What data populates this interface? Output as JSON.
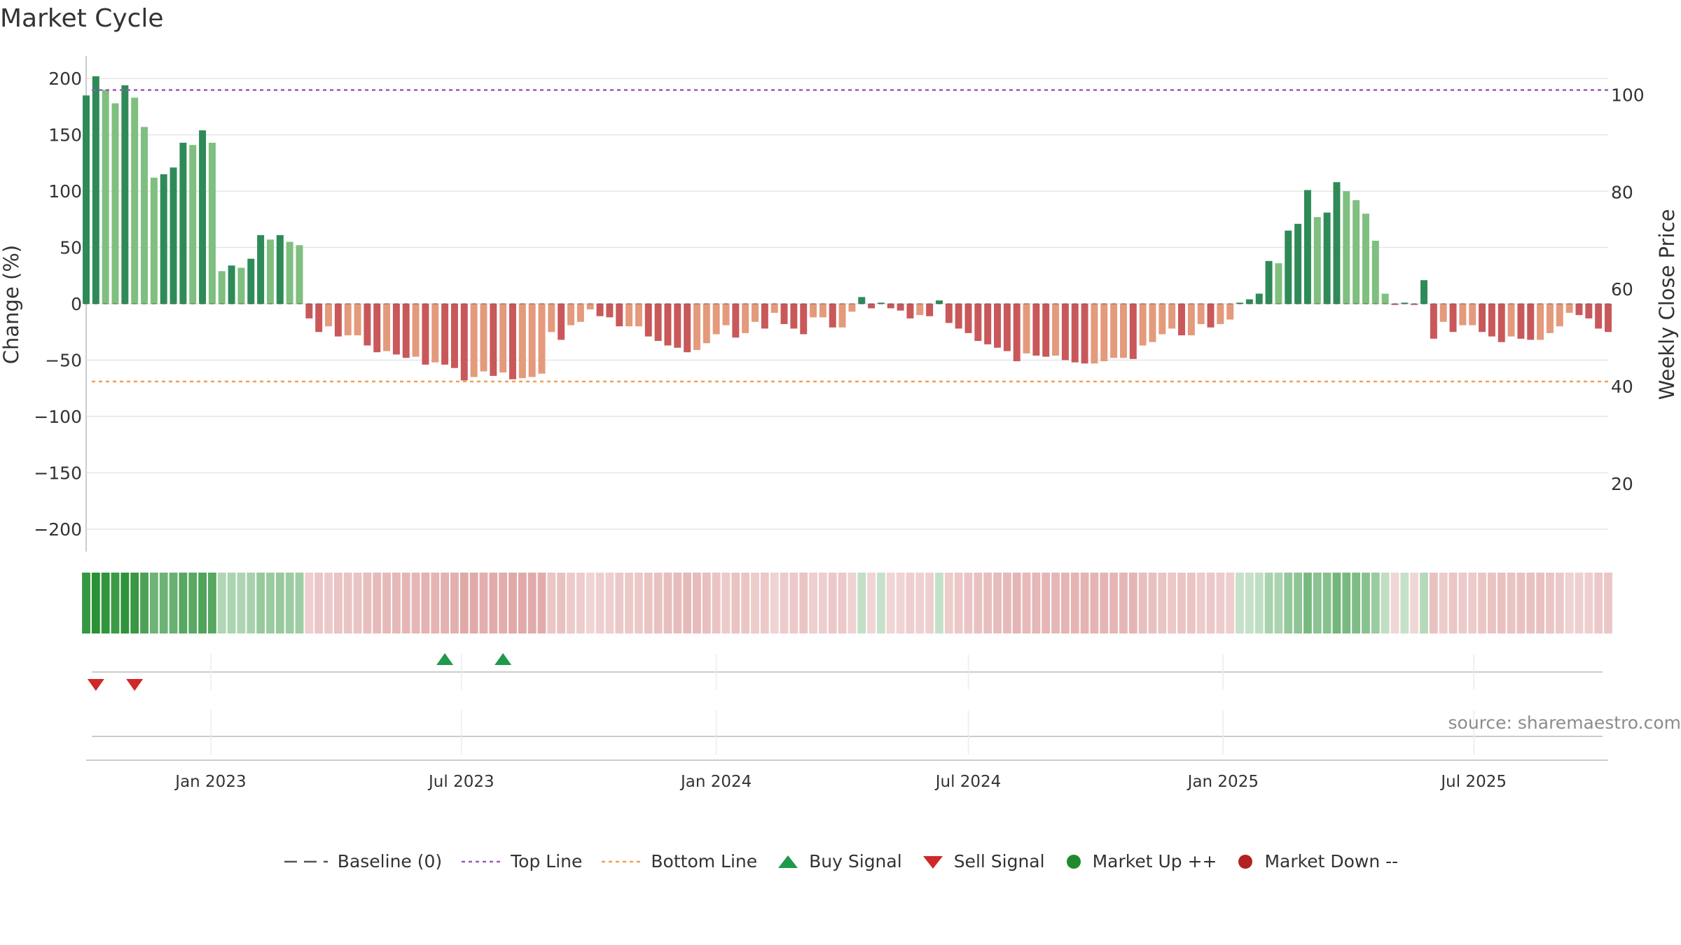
{
  "chart_data": {
    "type": "bar",
    "title": "Market Cycle",
    "ylabel": "Change (%)",
    "y2label": "Weekly Close Price",
    "ylim": [
      -220,
      220
    ],
    "y2lim": [
      6,
      108
    ],
    "yticks": [
      200,
      150,
      100,
      50,
      0,
      -50,
      -100,
      -150,
      -200
    ],
    "y2ticks": [
      100,
      80,
      60,
      40,
      20
    ],
    "xlim": [
      "2022-10-03",
      "2025-10-06"
    ],
    "xticks": [
      {
        "date": "2023-01-01",
        "label": "Jan 2023"
      },
      {
        "date": "2023-07-01",
        "label": "Jul 2023"
      },
      {
        "date": "2024-01-01",
        "label": "Jan 2024"
      },
      {
        "date": "2024-07-01",
        "label": "Jul 2024"
      },
      {
        "date": "2025-01-01",
        "label": "Jan 2025"
      },
      {
        "date": "2025-07-01",
        "label": "Jul 2025"
      }
    ],
    "start_date": "2022-10-03",
    "interval_days": 7,
    "top_line": 101,
    "bottom_line": 41,
    "values": [
      185,
      202,
      190,
      178,
      194,
      183,
      157,
      112,
      115,
      121,
      143,
      141,
      154,
      143,
      29,
      34,
      32,
      40,
      61,
      57,
      61,
      55,
      52,
      -13,
      -25,
      -20,
      -29,
      -28,
      -28,
      -37,
      -43,
      -42,
      -45,
      -48,
      -47,
      -54,
      -52,
      -54,
      -57,
      -68,
      -65,
      -60,
      -64,
      -61,
      -67,
      -66,
      -65,
      -62,
      -25,
      -32,
      -19,
      -16,
      -5,
      -11,
      -12,
      -20,
      -20,
      -20,
      -29,
      -33,
      -37,
      -39,
      -43,
      -41,
      -35,
      -27,
      -19,
      -30,
      -26,
      -16,
      -22,
      -8,
      -18,
      -22,
      -27,
      -12,
      -12,
      -21,
      -21,
      -7,
      6,
      -4,
      1,
      -4,
      -6,
      -13,
      -10,
      -11,
      3,
      -17,
      -22,
      -26,
      -33,
      -36,
      -39,
      -42,
      -51,
      -44,
      -46,
      -47,
      -46,
      -50,
      -52,
      -53,
      -53,
      -51,
      -48,
      -48,
      -49,
      -37,
      -34,
      -27,
      -22,
      -28,
      -28,
      -18,
      -21,
      -18,
      -14,
      1,
      4,
      9,
      38,
      36,
      65,
      71,
      101,
      77,
      81,
      108,
      100,
      92,
      80,
      56,
      9,
      -1,
      1,
      -1,
      21,
      -31,
      -16,
      -25,
      -19,
      -19,
      -25,
      -29,
      -34,
      -29,
      -31,
      -32,
      -32,
      -26,
      -20,
      -8,
      -10,
      -13,
      -22,
      -25
    ],
    "buy_signals": [
      "2023-06-19",
      "2023-07-31"
    ],
    "sell_signals": [
      "2022-10-10",
      "2022-11-07"
    ],
    "legend": [
      "Baseline (0)",
      "Top Line",
      "Bottom Line",
      "Buy Signal",
      "Sell Signal",
      "Market Up ++",
      "Market Down --"
    ],
    "legend_position": "bottom-center",
    "grid": true
  },
  "source": "source: sharemaestro.com",
  "colors": {
    "up_strong": "#2e8b57",
    "up_light": "#7fbf7f",
    "down_strong": "#c9585a",
    "down_light": "#e49a7c",
    "top_line": "#9b59b6",
    "bottom_line": "#f0a050",
    "buy": "#1e9a4a",
    "sell": "#d02828",
    "market_up": "#1f8b2c",
    "market_down": "#b22222",
    "baseline": "#555555"
  }
}
